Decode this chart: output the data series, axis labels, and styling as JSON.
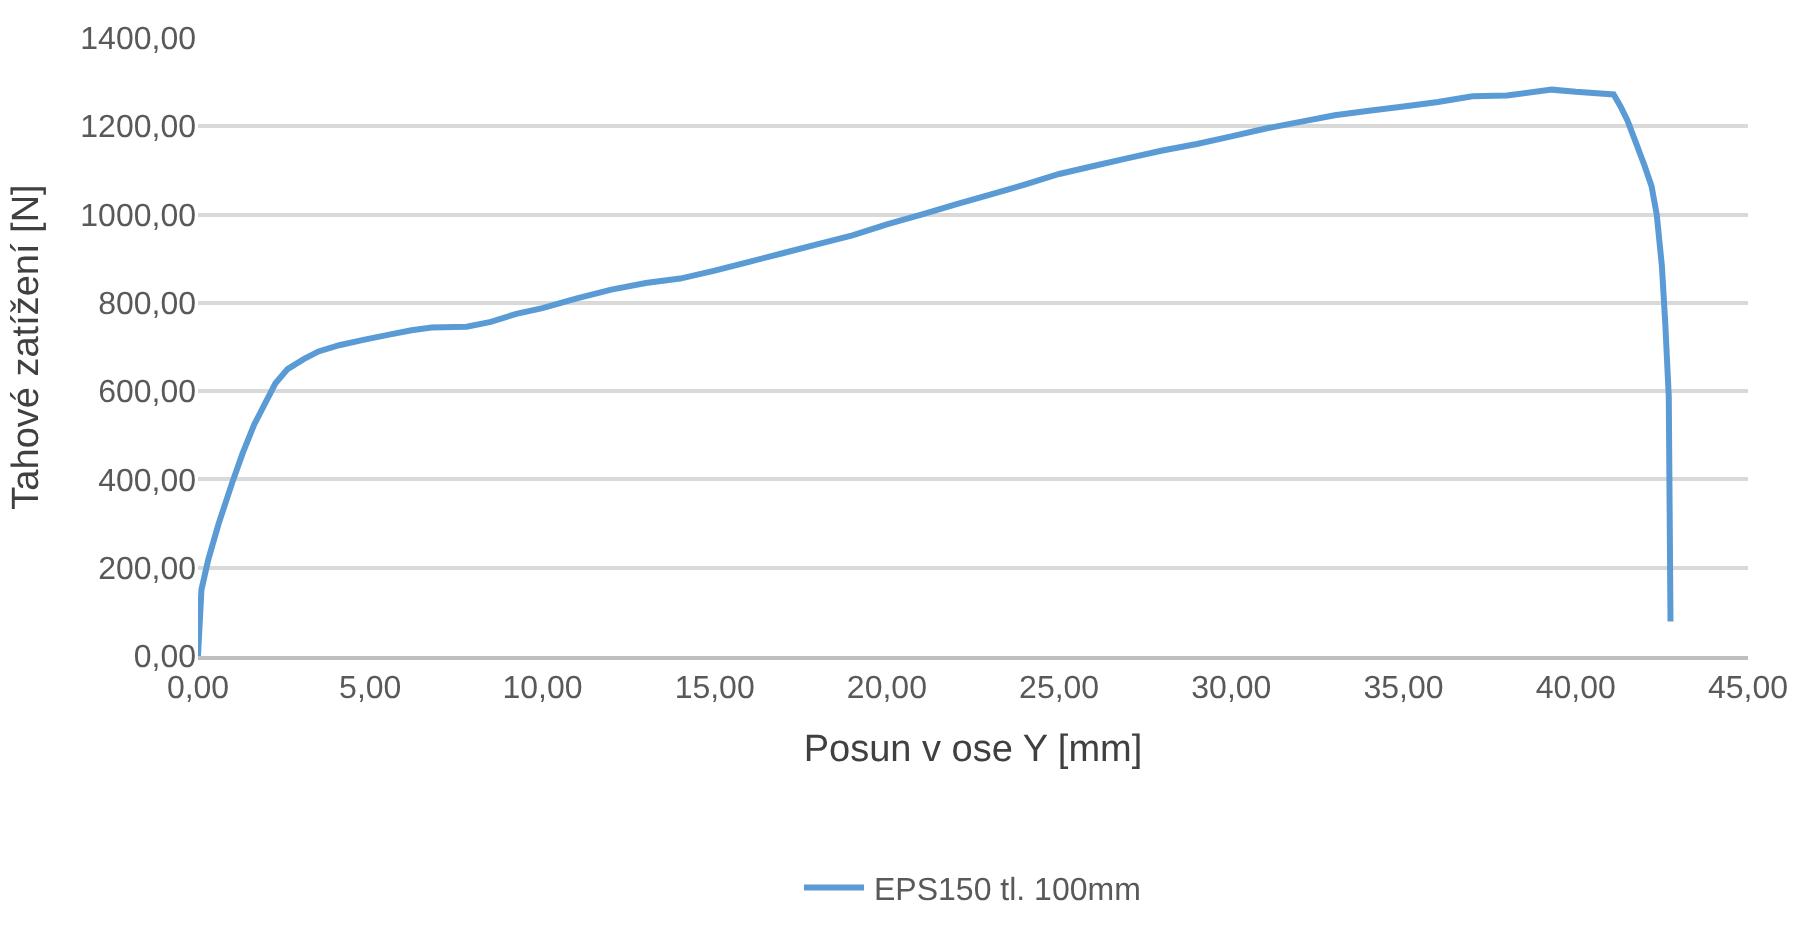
{
  "chart_data": {
    "type": "line",
    "xlabel": "Posun v ose Y [mm]",
    "ylabel": "Tahové zatížení [N]",
    "series": [
      {
        "name": "EPS150 tl. 100mm",
        "color": "#5b9bd5",
        "x": [
          0,
          0.1,
          0.3,
          0.6,
          1.02,
          1.3,
          1.63,
          2.0,
          2.25,
          2.6,
          3.08,
          3.5,
          4.1,
          4.8,
          5.55,
          6.2,
          6.78,
          7.8,
          8.5,
          9.24,
          10.0,
          11.0,
          12.0,
          13.0,
          14.0,
          15.0,
          16.0,
          17.0,
          18.0,
          19.0,
          20.0,
          21.0,
          22.0,
          23.0,
          24.0,
          25.0,
          26.0,
          27.0,
          28.0,
          29.0,
          30.0,
          31.0,
          32.0,
          33.0,
          34.0,
          35.0,
          36.0,
          37.0,
          38.0,
          39.3,
          40.0,
          41.1,
          41.3,
          41.5,
          41.77,
          42.0,
          42.2,
          42.35,
          42.5,
          42.6,
          42.7,
          42.75
        ],
        "values": [
          0,
          150,
          219,
          300,
          399,
          460,
          524,
          580,
          618,
          650,
          673,
          690,
          704,
          716,
          728,
          738,
          744,
          746,
          757,
          775,
          788,
          810,
          830,
          845,
          855,
          873,
          893,
          913,
          933,
          953,
          978,
          1000,
          1023,
          1045,
          1068,
          1092,
          1110,
          1128,
          1145,
          1160,
          1177,
          1195,
          1210,
          1225,
          1235,
          1245,
          1255,
          1268,
          1270,
          1283,
          1278,
          1272,
          1245,
          1213,
          1158,
          1110,
          1064,
          1000,
          884,
          750,
          587,
          78
        ]
      }
    ],
    "xlim": [
      0,
      45
    ],
    "ylim": [
      0,
      1400
    ],
    "xticks": [
      {
        "value": 0,
        "label": "0,00"
      },
      {
        "value": 5,
        "label": "5,00"
      },
      {
        "value": 10,
        "label": "10,00"
      },
      {
        "value": 15,
        "label": "15,00"
      },
      {
        "value": 20,
        "label": "20,00"
      },
      {
        "value": 25,
        "label": "25,00"
      },
      {
        "value": 30,
        "label": "30,00"
      },
      {
        "value": 35,
        "label": "35,00"
      },
      {
        "value": 40,
        "label": "40,00"
      },
      {
        "value": 45,
        "label": "45,00"
      }
    ],
    "yticks": [
      {
        "value": 0,
        "label": "0,00"
      },
      {
        "value": 200,
        "label": "200,00"
      },
      {
        "value": 400,
        "label": "400,00"
      },
      {
        "value": 600,
        "label": "600,00"
      },
      {
        "value": 800,
        "label": "800,00"
      },
      {
        "value": 1000,
        "label": "1000,00"
      },
      {
        "value": 1200,
        "label": "1200,00"
      },
      {
        "value": 1400,
        "label": "1400,00"
      }
    ],
    "grid": "y",
    "legend": "bottom",
    "marker": "none",
    "line_style": "solid"
  }
}
